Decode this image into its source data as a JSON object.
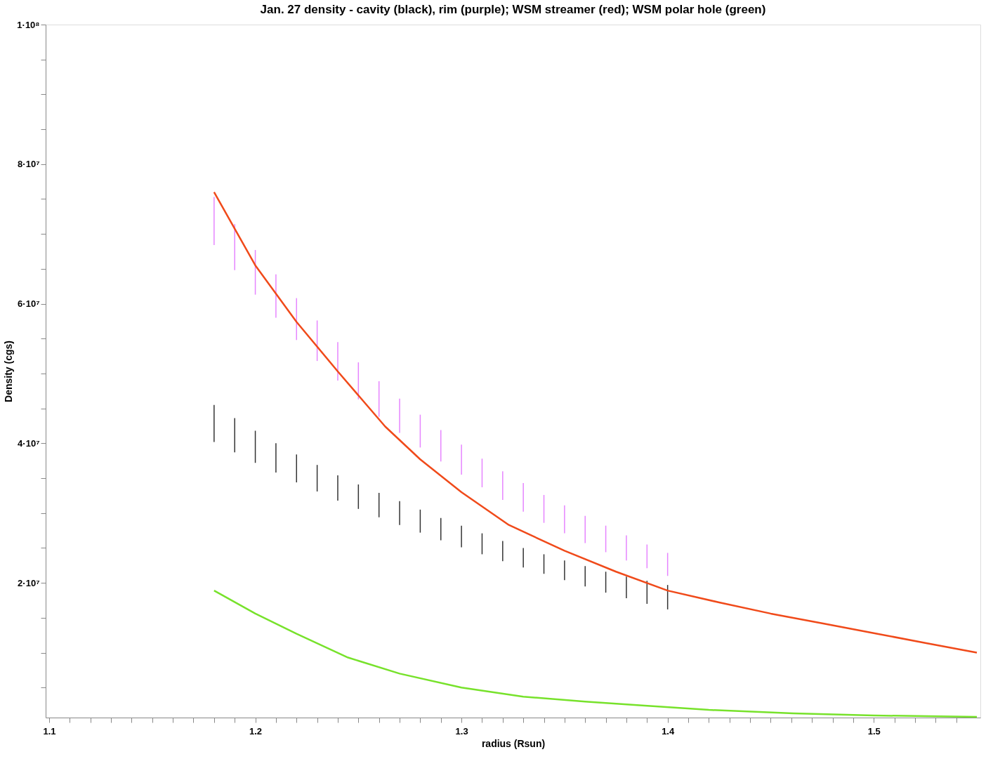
{
  "chart_data": {
    "type": "line",
    "title": "Jan. 27 density - cavity (black), rim (purple); WSM streamer (red); WSM polar hole (green)",
    "xlabel": "radius (Rsun)",
    "ylabel": "Density (cgs)",
    "xlim": [
      1.1,
      1.55
    ],
    "ylim": [
      700000,
      100000000
    ],
    "xticks": [
      1.1,
      {
        "value": 1.11,
        "label": null
      },
      {
        "value": 1.12,
        "label": null
      },
      {
        "value": 1.13,
        "label": null
      },
      {
        "value": 1.14,
        "label": null
      },
      {
        "value": 1.15,
        "label": null
      },
      {
        "value": 1.16,
        "label": null
      },
      {
        "value": 1.17,
        "label": null
      },
      {
        "value": 1.18,
        "label": null
      },
      {
        "value": 1.19,
        "label": null
      },
      1.2,
      {
        "value": 1.21,
        "label": null
      },
      {
        "value": 1.22,
        "label": null
      },
      {
        "value": 1.23,
        "label": null
      },
      {
        "value": 1.24,
        "label": null
      },
      {
        "value": 1.25,
        "label": null
      },
      {
        "value": 1.26,
        "label": null
      },
      {
        "value": 1.27,
        "label": null
      },
      {
        "value": 1.28,
        "label": null
      },
      {
        "value": 1.29,
        "label": null
      },
      1.3,
      {
        "value": 1.31,
        "label": null
      },
      {
        "value": 1.32,
        "label": null
      },
      {
        "value": 1.33,
        "label": null
      },
      {
        "value": 1.34,
        "label": null
      },
      {
        "value": 1.35,
        "label": null
      },
      {
        "value": 1.36,
        "label": null
      },
      {
        "value": 1.37,
        "label": null
      },
      {
        "value": 1.38,
        "label": null
      },
      {
        "value": 1.39,
        "label": null
      },
      1.4,
      {
        "value": 1.41,
        "label": null
      },
      {
        "value": 1.42,
        "label": null
      },
      {
        "value": 1.43,
        "label": null
      },
      {
        "value": 1.44,
        "label": null
      },
      {
        "value": 1.45,
        "label": null
      },
      {
        "value": 1.46,
        "label": null
      },
      {
        "value": 1.47,
        "label": null
      },
      {
        "value": 1.48,
        "label": null
      },
      {
        "value": 1.49,
        "label": null
      },
      1.5,
      {
        "value": 1.51,
        "label": null
      },
      {
        "value": 1.52,
        "label": null
      },
      {
        "value": 1.53,
        "label": null
      },
      {
        "value": 1.54,
        "label": null
      }
    ],
    "yticks": [
      {
        "value": 5000000,
        "label": null
      },
      {
        "value": 10000000,
        "label": null
      },
      {
        "value": 15000000,
        "label": null
      },
      {
        "value": 20000000,
        "label": "2·10⁷"
      },
      {
        "value": 25000000,
        "label": null
      },
      {
        "value": 30000000,
        "label": null
      },
      {
        "value": 35000000,
        "label": null
      },
      {
        "value": 40000000,
        "label": "4·10⁷"
      },
      {
        "value": 45000000,
        "label": null
      },
      {
        "value": 50000000,
        "label": null
      },
      {
        "value": 55000000,
        "label": null
      },
      {
        "value": 60000000,
        "label": "6·10⁷"
      },
      {
        "value": 65000000,
        "label": null
      },
      {
        "value": 70000000,
        "label": null
      },
      {
        "value": 75000000,
        "label": null
      },
      {
        "value": 80000000,
        "label": "8·10⁷"
      },
      {
        "value": 85000000,
        "label": null
      },
      {
        "value": 90000000,
        "label": null
      },
      {
        "value": 95000000,
        "label": null
      },
      {
        "value": 100000000,
        "label": "1·10⁸"
      }
    ],
    "grid": false,
    "series": [
      {
        "type": "bar",
        "color": "#000000",
        "x": [
          1.18,
          1.19,
          1.2,
          1.21,
          1.22,
          1.23,
          1.24,
          1.25,
          1.26,
          1.27,
          1.28,
          1.29,
          1.3,
          1.31,
          1.32,
          1.33,
          1.34,
          1.35,
          1.36,
          1.37,
          1.38,
          1.39,
          1.4
        ],
        "base": [
          40200000,
          38700000,
          37200000,
          35800000,
          34400000,
          33100000,
          31800000,
          30600000,
          29400000,
          28300000,
          27200000,
          26100000,
          25100000,
          24100000,
          23100000,
          22200000,
          21300000,
          20400000,
          19500000,
          18600000,
          17800000,
          17000000,
          16200000
        ],
        "values": [
          5300000,
          4900000,
          4600000,
          4200000,
          4000000,
          3800000,
          3600000,
          3500000,
          3500000,
          3400000,
          3300000,
          3200000,
          3100000,
          3000000,
          2900000,
          2800000,
          2800000,
          2800000,
          2900000,
          3000000,
          3100000,
          3300000,
          3500000
        ]
      },
      {
        "type": "bar",
        "color": "#e066ff",
        "x": [
          1.18,
          1.19,
          1.2,
          1.21,
          1.22,
          1.23,
          1.24,
          1.25,
          1.26,
          1.27,
          1.28,
          1.29,
          1.3,
          1.31,
          1.32,
          1.33,
          1.34,
          1.35,
          1.36,
          1.37,
          1.38,
          1.39,
          1.4
        ],
        "base": [
          68400000,
          64800000,
          61300000,
          58000000,
          54800000,
          51800000,
          49000000,
          46300000,
          43800000,
          41500000,
          39400000,
          37400000,
          35500000,
          33700000,
          31900000,
          30200000,
          28600000,
          27100000,
          25700000,
          24400000,
          23200000,
          22100000,
          21000000
        ],
        "values": [
          6900000,
          6600000,
          6400000,
          6200000,
          6000000,
          5800000,
          5500000,
          5300000,
          5100000,
          4900000,
          4700000,
          4500000,
          4300000,
          4100000,
          4100000,
          4100000,
          4000000,
          4000000,
          3900000,
          3800000,
          3600000,
          3400000,
          3300000
        ]
      },
      {
        "color": "#f04a1a",
        "x": [
          1.18,
          1.2,
          1.22,
          1.24,
          1.263,
          1.28,
          1.3,
          1.323,
          1.35,
          1.375,
          1.4,
          1.425,
          1.45,
          1.475,
          1.5,
          1.525,
          1.55
        ],
        "values": [
          76000000,
          65500000,
          57400000,
          50300000,
          42400000,
          37700000,
          33000000,
          28300000,
          24600000,
          21600000,
          18900000,
          17200000,
          15600000,
          14200000,
          12800000,
          11400000,
          10000000
        ]
      },
      {
        "color": "#77e22b",
        "x": [
          1.18,
          1.2,
          1.22,
          1.245,
          1.27,
          1.3,
          1.33,
          1.36,
          1.389,
          1.42,
          1.461,
          1.5,
          1.55
        ],
        "values": [
          18900000,
          15600000,
          12700000,
          9300000,
          7000000,
          5000000,
          3700000,
          3000000,
          2400000,
          1800000,
          1300000,
          1000000,
          800000
        ]
      }
    ]
  }
}
